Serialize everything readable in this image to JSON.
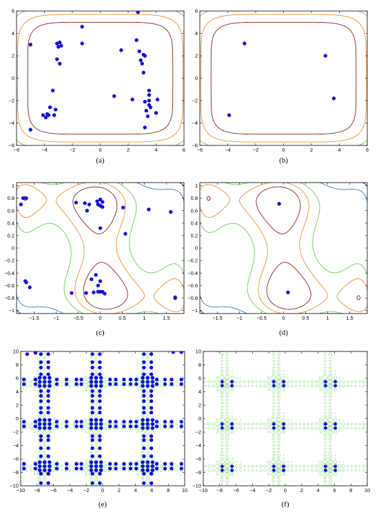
{
  "colors": {
    "marker": "#1010e0",
    "contour_inner": "#8b1a1a",
    "contour_orange": "#f08c28",
    "contour_green": "#66cc55",
    "contour_blue": "#3377cc",
    "contour_navy": "#1a1a7a",
    "axes": "#000000"
  },
  "chart_data": [
    {
      "panel": "a",
      "caption": "(a)",
      "type": "scatter",
      "xlim": [
        -6,
        6
      ],
      "ylim": [
        -6,
        6
      ],
      "xticks": [
        -6,
        -4,
        -2,
        0,
        2,
        4,
        6
      ],
      "yticks": [
        -6,
        -4,
        -2,
        0,
        2,
        4,
        6
      ],
      "xtick_labels": [
        "−6",
        "−4",
        "−2",
        "0",
        "2",
        "4",
        "6"
      ],
      "ytick_labels": [
        "−6",
        "−4",
        "−2",
        "0",
        "2",
        "4",
        "6"
      ],
      "contours": "rounded-square",
      "points": [
        [
          -5,
          3
        ],
        [
          -5,
          -4.6
        ],
        [
          -3.1,
          3.1
        ],
        [
          -2.9,
          3.2
        ],
        [
          -3,
          2.8
        ],
        [
          -2.8,
          2.9
        ],
        [
          -3.1,
          1.7
        ],
        [
          -2.9,
          1.3
        ],
        [
          -1.3,
          4.6
        ],
        [
          -1.3,
          3.1
        ],
        [
          -3.4,
          -1.1
        ],
        [
          -3.6,
          -2.6
        ],
        [
          -3.2,
          -2.8
        ],
        [
          -3.3,
          -3.3
        ],
        [
          -3.7,
          -3.3
        ],
        [
          -3.9,
          -3.5
        ],
        [
          -4.1,
          -3.3
        ],
        [
          -3.8,
          -3.2
        ],
        [
          1.5,
          2.5
        ],
        [
          2.7,
          5.9
        ],
        [
          2.6,
          3.4
        ],
        [
          2.8,
          2.4
        ],
        [
          3.1,
          2.1
        ],
        [
          3.2,
          2.0
        ],
        [
          2.9,
          1.6
        ],
        [
          3.0,
          1.3
        ],
        [
          3.1,
          0.5
        ],
        [
          1.0,
          -1.6
        ],
        [
          2.3,
          -1.9
        ],
        [
          3.2,
          -2.1
        ],
        [
          3.5,
          -1.1
        ],
        [
          3.5,
          -1.5
        ],
        [
          3.5,
          -2.0
        ],
        [
          3.5,
          -2.4
        ],
        [
          3.6,
          -2.6
        ],
        [
          3.3,
          -2.9
        ],
        [
          3.4,
          -3.4
        ],
        [
          4.1,
          -1.9
        ],
        [
          4.0,
          -3.1
        ],
        [
          3.2,
          -4.4
        ]
      ]
    },
    {
      "panel": "b",
      "caption": "(b)",
      "type": "scatter",
      "xlim": [
        -6,
        6
      ],
      "ylim": [
        -6,
        6
      ],
      "xticks": [
        -6,
        -4,
        -2,
        0,
        2,
        4,
        6
      ],
      "yticks": [
        -6,
        -4,
        -2,
        0,
        2,
        4,
        6
      ],
      "xtick_labels": [
        "−6",
        "−4",
        "−2",
        "0",
        "2",
        "4",
        "6"
      ],
      "ytick_labels": [
        "−6",
        "−4",
        "−2",
        "0",
        "2",
        "4",
        "6"
      ],
      "contours": "rounded-square",
      "points": [
        [
          -2.8,
          3.1
        ],
        [
          3.0,
          2.0
        ],
        [
          3.6,
          -1.8
        ],
        [
          -3.9,
          -3.3
        ]
      ]
    },
    {
      "panel": "c",
      "caption": "(c)",
      "type": "scatter",
      "xlim": [
        -1.9,
        1.9
      ],
      "ylim": [
        -1.05,
        1.05
      ],
      "xticks": [
        -1.5,
        -1,
        -0.5,
        0,
        0.5,
        1,
        1.5
      ],
      "yticks": [
        -1,
        -0.8,
        -0.6,
        -0.4,
        -0.2,
        0,
        0.2,
        0.4,
        0.6,
        0.8,
        1
      ],
      "xtick_labels": [
        "−1.5",
        "−1",
        "−0.5",
        "0",
        "0.5",
        "1",
        "1.5"
      ],
      "ytick_labels": [
        "−1",
        "−0.8",
        "−0.6",
        "−0.4",
        "−0.2",
        "0",
        "0.2",
        "0.4",
        "0.6",
        "0.8",
        "1"
      ],
      "contours": "six-hump-camel",
      "points": [
        [
          -1.75,
          0.8
        ],
        [
          -1.68,
          0.8
        ],
        [
          -1.8,
          0.7
        ],
        [
          -0.55,
          0.73
        ],
        [
          -0.35,
          0.72
        ],
        [
          -0.25,
          0.7
        ],
        [
          -0.07,
          0.75
        ],
        [
          0.0,
          0.78
        ],
        [
          0.05,
          0.74
        ],
        [
          -0.05,
          0.7
        ],
        [
          0.0,
          0.68
        ],
        [
          0.05,
          0.66
        ],
        [
          -0.3,
          0.6
        ],
        [
          0.52,
          0.65
        ],
        [
          0.0,
          0.32
        ],
        [
          0.57,
          0.23
        ],
        [
          1.1,
          0.62
        ],
        [
          1.6,
          0.58
        ],
        [
          -1.7,
          -0.53
        ],
        [
          -1.68,
          -0.55
        ],
        [
          -1.6,
          -0.63
        ],
        [
          -0.1,
          -0.43
        ],
        [
          -0.2,
          -0.5
        ],
        [
          0.0,
          -0.53
        ],
        [
          -0.05,
          -0.6
        ],
        [
          -0.65,
          -0.72
        ],
        [
          -0.32,
          -0.72
        ],
        [
          -0.15,
          -0.71
        ],
        [
          -0.05,
          -0.7
        ],
        [
          0.0,
          -0.7
        ],
        [
          0.05,
          -0.7
        ],
        [
          0.1,
          -0.73
        ],
        [
          1.7,
          -0.8
        ]
      ]
    },
    {
      "panel": "d",
      "caption": "(d)",
      "type": "scatter",
      "xlim": [
        -1.9,
        1.9
      ],
      "ylim": [
        -1.05,
        1.05
      ],
      "xticks": [
        -1.5,
        -1,
        -0.5,
        0,
        0.5,
        1,
        1.5
      ],
      "yticks": [
        -1,
        -0.8,
        -0.6,
        -0.4,
        -0.2,
        0,
        0.2,
        0.4,
        0.6,
        0.8,
        1
      ],
      "xtick_labels": [
        "−1.5",
        "−1",
        "−0.5",
        "0",
        "0.5",
        "1",
        "1.5"
      ],
      "ytick_labels": [
        "−1",
        "−0.8",
        "−0.6",
        "−0.4",
        "−0.2",
        "0",
        "0.2",
        "0.4",
        "0.6",
        "0.8",
        "1"
      ],
      "contours": "six-hump-camel",
      "points": [
        [
          -0.1,
          0.71
        ],
        [
          0.1,
          -0.71
        ]
      ]
    },
    {
      "panel": "e",
      "caption": "(e)",
      "type": "scatter",
      "xlim": [
        -10,
        10
      ],
      "ylim": [
        -10,
        10
      ],
      "xticks": [
        -10,
        -8,
        -6,
        -4,
        -2,
        0,
        2,
        4,
        6,
        8,
        10
      ],
      "yticks": [
        -10,
        -8,
        -6,
        -4,
        -2,
        0,
        2,
        4,
        6,
        8,
        10
      ],
      "xtick_labels": [
        "−10",
        "−8",
        "−6",
        "−4",
        "−2",
        "0",
        "2",
        "4",
        "6",
        "8",
        "10"
      ],
      "ytick_labels": [
        "−10",
        "−8",
        "−6",
        "−4",
        "−2",
        "0",
        "2",
        "4",
        "6",
        "8",
        "10"
      ],
      "contours": "shubert-grid",
      "grid_centers": [
        -7.08,
        -0.8,
        5.48
      ],
      "points_description_omitted": false,
      "points": "generated-cross-pattern"
    },
    {
      "panel": "f",
      "caption": "(f)",
      "type": "scatter",
      "xlim": [
        -10,
        10
      ],
      "ylim": [
        -10,
        10
      ],
      "xticks": [
        -10,
        -8,
        -6,
        -4,
        -2,
        0,
        2,
        4,
        6,
        8,
        10
      ],
      "yticks": [
        -10,
        -8,
        -6,
        -4,
        -2,
        0,
        2,
        4,
        6,
        8,
        10
      ],
      "xtick_labels": [
        "−10",
        "−8",
        "−6",
        "−4",
        "−2",
        "0",
        "2",
        "4",
        "6",
        "8",
        "10"
      ],
      "ytick_labels": [
        "−10",
        "−8",
        "−6",
        "−4",
        "−2",
        "0",
        "2",
        "4",
        "6",
        "8",
        "10"
      ],
      "contours": "shubert-grid",
      "grid_centers": [
        -7.08,
        -0.8,
        5.48
      ],
      "points": [
        [
          -7.7,
          5.5
        ],
        [
          -6.5,
          5.5
        ],
        [
          -7.7,
          4.9
        ],
        [
          -6.5,
          4.9
        ],
        [
          -1.4,
          5.5
        ],
        [
          -0.2,
          5.5
        ],
        [
          -1.4,
          4.9
        ],
        [
          -0.2,
          4.9
        ],
        [
          4.9,
          5.5
        ],
        [
          6.1,
          5.5
        ],
        [
          4.9,
          4.9
        ],
        [
          6.1,
          4.9
        ],
        [
          -7.7,
          -0.8
        ],
        [
          -6.5,
          -0.8
        ],
        [
          -7.7,
          -1.4
        ],
        [
          -6.5,
          -1.4
        ],
        [
          -1.4,
          -0.8
        ],
        [
          -0.2,
          -0.8
        ],
        [
          -1.4,
          -1.4
        ],
        [
          -0.2,
          -1.4
        ],
        [
          4.9,
          -0.8
        ],
        [
          6.1,
          -0.8
        ],
        [
          4.9,
          -1.4
        ],
        [
          6.1,
          -1.4
        ],
        [
          -7.7,
          -7.1
        ],
        [
          -6.5,
          -7.1
        ],
        [
          -7.7,
          -7.7
        ],
        [
          -6.5,
          -7.7
        ],
        [
          -1.4,
          -7.1
        ],
        [
          -0.2,
          -7.1
        ],
        [
          -1.4,
          -7.7
        ],
        [
          -0.2,
          -7.7
        ],
        [
          4.9,
          -7.1
        ],
        [
          6.1,
          -7.1
        ],
        [
          4.9,
          -7.7
        ],
        [
          6.1,
          -7.7
        ]
      ]
    }
  ]
}
